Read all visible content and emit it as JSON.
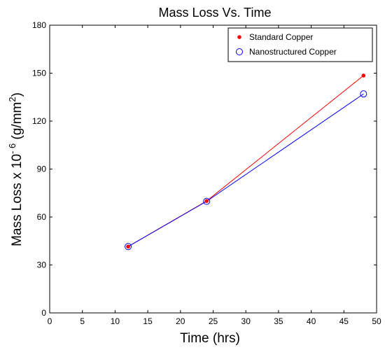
{
  "chart_data": {
    "type": "line",
    "title": "Mass Loss Vs. Time",
    "xlabel": "Time (hrs)",
    "ylabel": {
      "prefix": "Mass Loss x 10",
      "exponent": "- 6",
      "unit_open": " (g/mm",
      "unit_exponent": "2",
      "unit_close": ")"
    },
    "xlim": [
      0,
      50
    ],
    "ylim": [
      0,
      180
    ],
    "x_ticks": [
      0,
      5,
      10,
      15,
      20,
      25,
      30,
      35,
      40,
      45,
      50
    ],
    "y_ticks": [
      0,
      30,
      60,
      90,
      120,
      150,
      180
    ],
    "grid": false,
    "legend_position": "top-right",
    "series": [
      {
        "name": "Standard Copper",
        "color": "#ff0000",
        "marker": "filled-dot",
        "x": [
          12,
          24,
          48
        ],
        "y": [
          41.5,
          70,
          148.5
        ]
      },
      {
        "name": "Nanostructured Copper",
        "color": "#0000ff",
        "marker": "open-circle",
        "x": [
          12,
          24,
          48
        ],
        "y": [
          41.5,
          69.8,
          137
        ]
      }
    ]
  }
}
